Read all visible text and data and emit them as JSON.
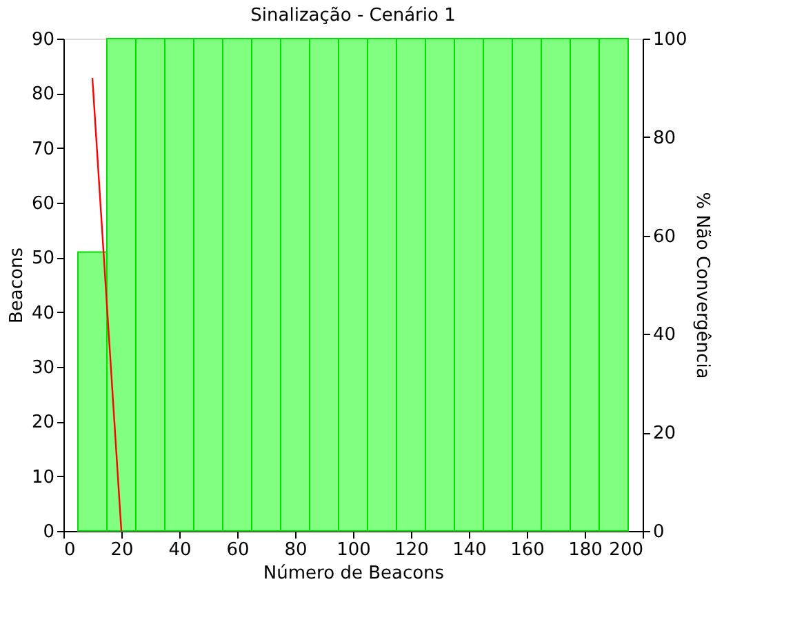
{
  "chart_data": {
    "type": "histogram",
    "title": "Sinalização - Cenário 1",
    "xlabel": "Número de Beacons",
    "ylabel": "Beacons",
    "y2label": "% Não Convergência",
    "xlim": [
      0,
      200
    ],
    "xticks": [
      0,
      20,
      40,
      60,
      80,
      100,
      120,
      140,
      160,
      180,
      200
    ],
    "ylim": [
      0,
      90
    ],
    "yticks": [
      0,
      10,
      20,
      30,
      40,
      50,
      60,
      70,
      80,
      90
    ],
    "y2lim": [
      0,
      100
    ],
    "y2ticks": [
      0,
      20,
      40,
      60,
      80,
      100
    ],
    "grid": false,
    "series": [
      {
        "color": "#80ff80",
        "bins": [
          5,
          15,
          25,
          35,
          45,
          55,
          65,
          75,
          85,
          95,
          105,
          115,
          125,
          135,
          145,
          155,
          165,
          175,
          185,
          195
        ],
        "values": [
          51,
          90,
          90,
          90,
          90,
          90,
          90,
          90,
          90,
          90,
          90,
          90,
          90,
          90,
          90,
          90,
          90,
          90,
          90
        ]
      },
      {
        "type": "line",
        "color": "#ff0000",
        "axis": "y2",
        "x": [
          10,
          20
        ],
        "values": [
          92,
          0
        ]
      }
    ]
  }
}
